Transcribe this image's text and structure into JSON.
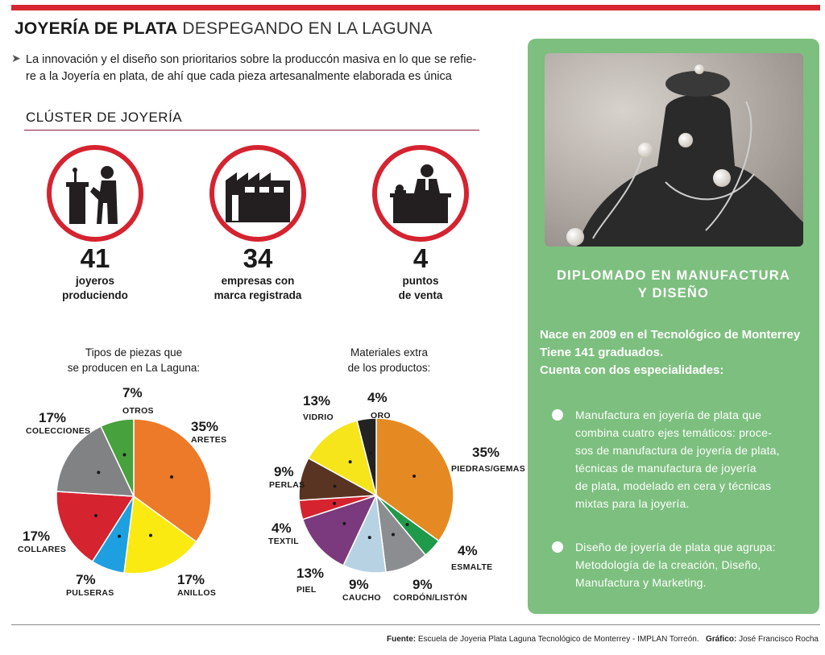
{
  "header": {
    "title_bold": "JOYERÍA DE PLATA",
    "title_light": "DESPEGANDO EN LA LAGUNA",
    "intro_line1": "La innovación y el diseño son prioritarios sobre la produccón masiva en lo que se refie-",
    "intro_line2": "re a la Joyería en plata, de ahí que cada pieza artesanalmente elaborada es única",
    "section_title": "CLÚSTER DE JOYERÍA"
  },
  "stats": [
    {
      "icon": "jeweler-icon",
      "value": "41",
      "line1": "joyeros",
      "line2": "produciendo"
    },
    {
      "icon": "factory-icon",
      "value": "34",
      "line1": "empresas con",
      "line2": "marca registrada"
    },
    {
      "icon": "store-counter-icon",
      "value": "4",
      "line1": "puntos",
      "line2": "de venta"
    }
  ],
  "chart_data": [
    {
      "type": "pie",
      "title_line1": "Tipos de piezas que",
      "title_line2": "se producen en La Laguna:",
      "slices": [
        {
          "label": "ARETES",
          "pct_label": "35%",
          "value": 35,
          "color": "#ec7a28"
        },
        {
          "label": "ANILLOS",
          "pct_label": "17%",
          "value": 17,
          "color": "#fbea12"
        },
        {
          "label": "PULSERAS",
          "pct_label": "7%",
          "value": 7,
          "color": "#1e9fe0"
        },
        {
          "label": "COLLARES",
          "pct_label": "17%",
          "value": 17,
          "color": "#d5232f"
        },
        {
          "label": "COLECCIONES",
          "pct_label": "17%",
          "value": 17,
          "color": "#808284"
        },
        {
          "label": "OTROS",
          "pct_label": "7%",
          "value": 7,
          "color": "#47a13c"
        }
      ]
    },
    {
      "type": "pie",
      "title_line1": "Materiales extra",
      "title_line2": "de los productos:",
      "slices": [
        {
          "label": "PIEDRAS/GEMAS",
          "pct_label": "35%",
          "value": 35,
          "color": "#e58a22"
        },
        {
          "label": "ESMALTE",
          "pct_label": "4%",
          "value": 4,
          "color": "#1f9a4a"
        },
        {
          "label": "CORDÓN/LISTÓN",
          "pct_label": "9%",
          "value": 9,
          "color": "#8b8d90"
        },
        {
          "label": "CAUCHO",
          "pct_label": "9%",
          "value": 9,
          "color": "#b7d3e3"
        },
        {
          "label": "PIEL",
          "pct_label": "13%",
          "value": 13,
          "color": "#7b3a7d"
        },
        {
          "label": "TEXTIL",
          "pct_label": "4%",
          "value": 4,
          "color": "#d5232f"
        },
        {
          "label": "PERLAS",
          "pct_label": "9%",
          "value": 9,
          "color": "#5a3422"
        },
        {
          "label": "VIDRIO",
          "pct_label": "13%",
          "value": 13,
          "color": "#f5e51a"
        },
        {
          "label": "ORO",
          "pct_label": "4%",
          "value": 4,
          "color": "#232323"
        }
      ]
    }
  ],
  "panel": {
    "title_line1": "DIPLOMADO EN MANUFACTURA",
    "title_line2": "Y DISEÑO",
    "fact1": "Nace en 2009 en el Tecnológico de Monterrey",
    "fact2": "Tiene 141 graduados.",
    "fact3": "Cuenta con dos especialidades:",
    "bullet1": [
      "Manufactura en joyería de plata que",
      "combina cuatro ejes temáticos: proce-",
      "sos de manufactura de joyería de plata,",
      "técnicas de manufactura de joyería",
      "de plata, modelado en cera y técnicas",
      "mixtas para la joyería."
    ],
    "bullet2": [
      "Diseño de joyería de plata que agrupa:",
      "Metodología de la creación, Diseño,",
      "Manufactura y Marketing."
    ]
  },
  "footer": {
    "source_label": "Fuente:",
    "source_text": "Escuela de Joyeria Plata Laguna Tecnológico de Monterrey - IMPLAN Torreón.",
    "credit_label": "Gráfico:",
    "credit_text": "José Francisco Rocha"
  }
}
